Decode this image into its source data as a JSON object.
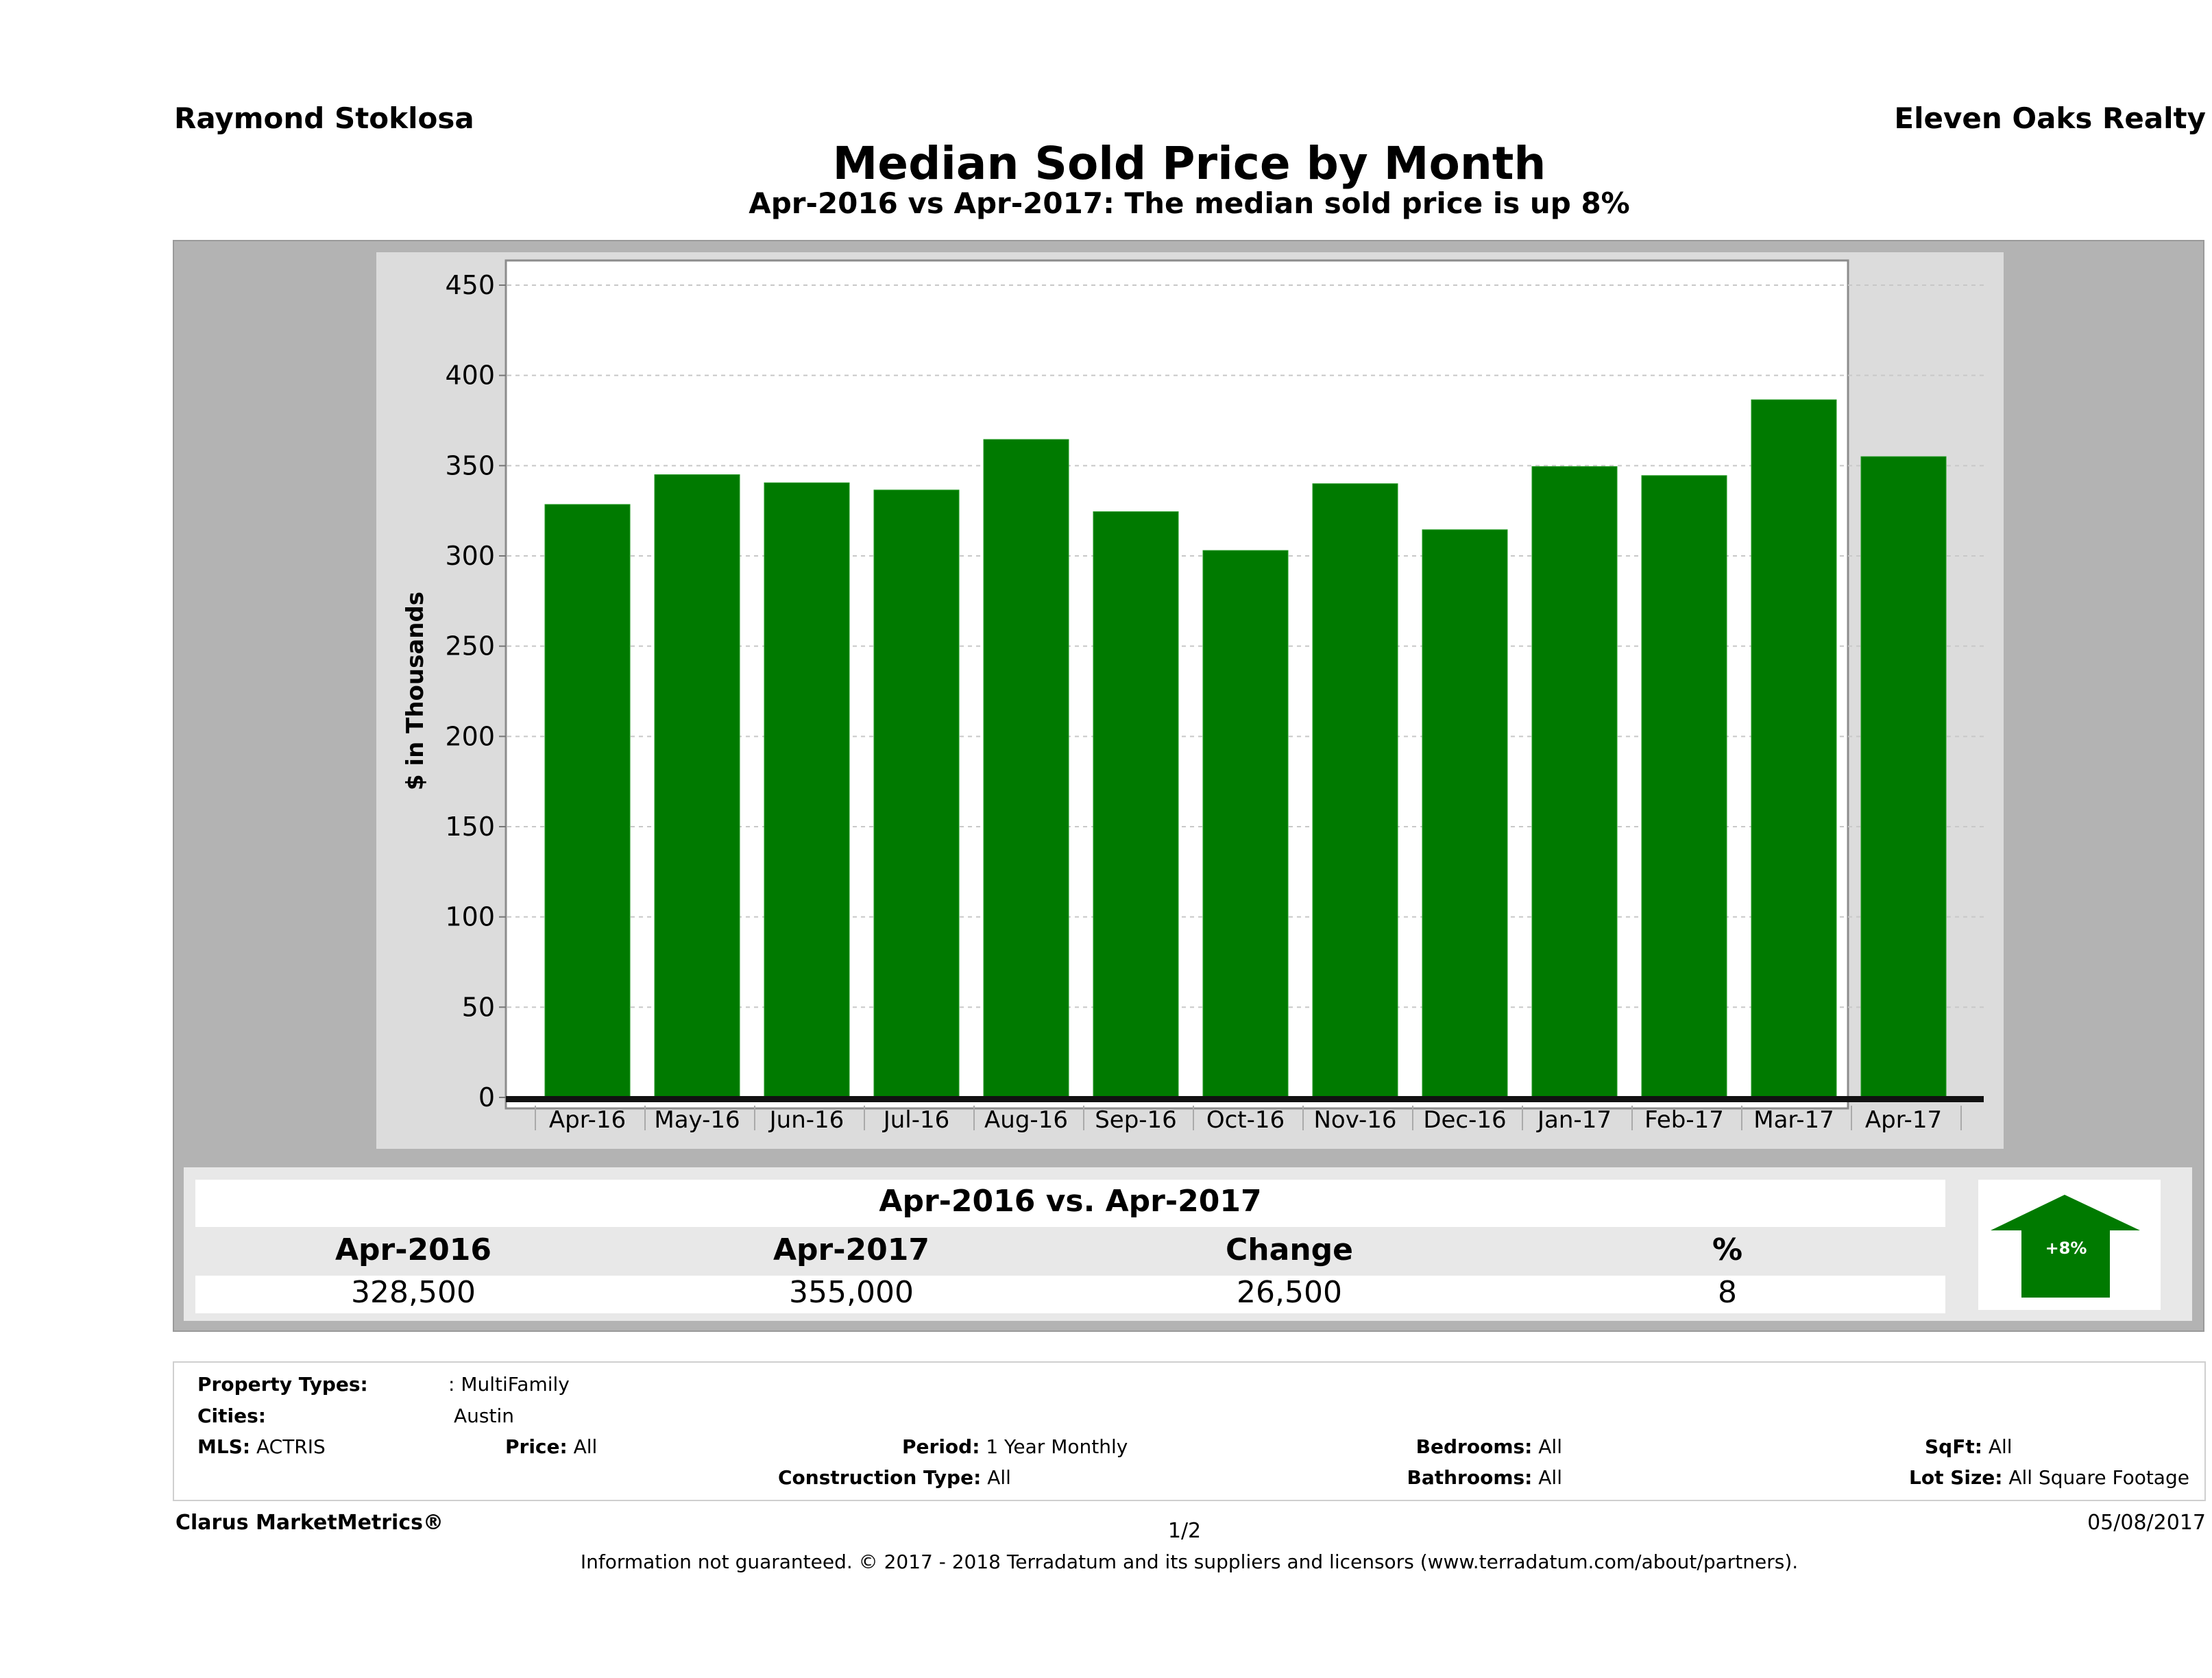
{
  "header": {
    "agent_name": "Raymond Stoklosa",
    "company_name": "Eleven Oaks Realty",
    "title": "Median Sold Price by Month",
    "subtitle": "Apr-2016 vs Apr-2017: The median sold price is up 8%"
  },
  "colors": {
    "bar": "#007a00",
    "panel_outer": "#b3b3b3",
    "panel_chart": "#dcdcdc",
    "arrow": "#007a00"
  },
  "chart_data": {
    "type": "bar",
    "title": "Median Sold Price by Month",
    "xlabel": "",
    "ylabel": "$ in Thousands",
    "ylim": [
      0,
      450
    ],
    "yticks": [
      0,
      50,
      100,
      150,
      200,
      250,
      300,
      350,
      400,
      450
    ],
    "grid": true,
    "categories": [
      "Apr-16",
      "May-16",
      "Jun-16",
      "Jul-16",
      "Aug-16",
      "Sep-16",
      "Oct-16",
      "Nov-16",
      "Dec-16",
      "Jan-17",
      "Feb-17",
      "Mar-17",
      "Apr-17"
    ],
    "values": [
      328.5,
      345,
      340.5,
      336.5,
      364.5,
      324.5,
      303,
      340,
      314.5,
      349.5,
      344.5,
      386.5,
      355
    ]
  },
  "summary": {
    "title": "Apr-2016 vs. Apr-2017",
    "headers": [
      "Apr-2016",
      "Apr-2017",
      "Change",
      "%"
    ],
    "values": [
      "328,500",
      "355,000",
      "26,500",
      "8"
    ],
    "arrow_label": "+8%",
    "arrow_direction": "up"
  },
  "criteria": {
    "property_types_label": "Property Types:",
    "property_types_value": ": MultiFamily",
    "cities_label": "Cities:",
    "cities_value": "Austin",
    "mls_label": "MLS:",
    "mls_value": "ACTRIS",
    "price_label": "Price:",
    "price_value": "All",
    "period_label": "Period:",
    "period_value": "1 Year Monthly",
    "construction_label": "Construction Type:",
    "construction_value": "All",
    "bedrooms_label": "Bedrooms:",
    "bedrooms_value": "All",
    "bathrooms_label": "Bathrooms:",
    "bathrooms_value": "All",
    "sqft_label": "SqFt:",
    "sqft_value": "All",
    "lotsize_label": "Lot Size:",
    "lotsize_value": "All Square Footage"
  },
  "footer": {
    "brand": "Clarus MarketMetrics®",
    "page": "1/2",
    "date": "05/08/2017",
    "disclaimer": "Information not guaranteed. © 2017 - 2018 Terradatum and its suppliers and licensors (www.terradatum.com/about/partners)."
  }
}
